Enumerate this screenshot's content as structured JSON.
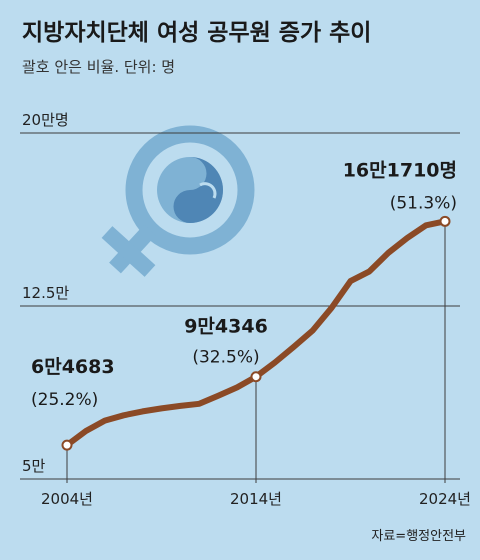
{
  "title": "지방자치단체 여성 공무원 증가 추이",
  "subtitle": "괄호 안은 비율. 단위: 명",
  "source": "자료=행정안전부",
  "icon": "female-symbol-icon",
  "colors": {
    "background": "#bcdcef",
    "line": "#8b4a26",
    "icon": "#7fb2d4",
    "icon_dark": "#4f86b5"
  },
  "chart_data": {
    "type": "line",
    "title": "지방자치단체 여성 공무원 증가 추이",
    "subtitle": "괄호 안은 비율. 단위: 명",
    "xlabel": "",
    "ylabel": "",
    "ylim": [
      50000,
      200000
    ],
    "y_ticks": [
      {
        "value": 200000,
        "label": "20만명"
      },
      {
        "value": 125000,
        "label": "12.5만"
      },
      {
        "value": 50000,
        "label": "5만"
      }
    ],
    "x_ticks": [
      {
        "value": 2004,
        "label": "2004년"
      },
      {
        "value": 2014,
        "label": "2014년"
      },
      {
        "value": 2024,
        "label": "2024년"
      }
    ],
    "x": [
      2004,
      2005,
      2006,
      2007,
      2008,
      2009,
      2010,
      2011,
      2012,
      2013,
      2014,
      2015,
      2016,
      2017,
      2018,
      2019,
      2020,
      2021,
      2022,
      2023,
      2024
    ],
    "values": [
      64683,
      70800,
      75300,
      77600,
      79300,
      80600,
      81700,
      82600,
      86100,
      89700,
      94346,
      100500,
      107300,
      114400,
      124200,
      135800,
      140000,
      148000,
      154500,
      160000,
      161710
    ],
    "annotations": [
      {
        "x": 2004,
        "value": 64683,
        "label": "6만4683",
        "pct": "(25.2%)"
      },
      {
        "x": 2014,
        "value": 94346,
        "label": "9만4346",
        "pct": "(32.5%)"
      },
      {
        "x": 2024,
        "value": 161710,
        "label": "16만1710명",
        "pct": "(51.3%)"
      }
    ],
    "grid": true,
    "legend": "none"
  }
}
